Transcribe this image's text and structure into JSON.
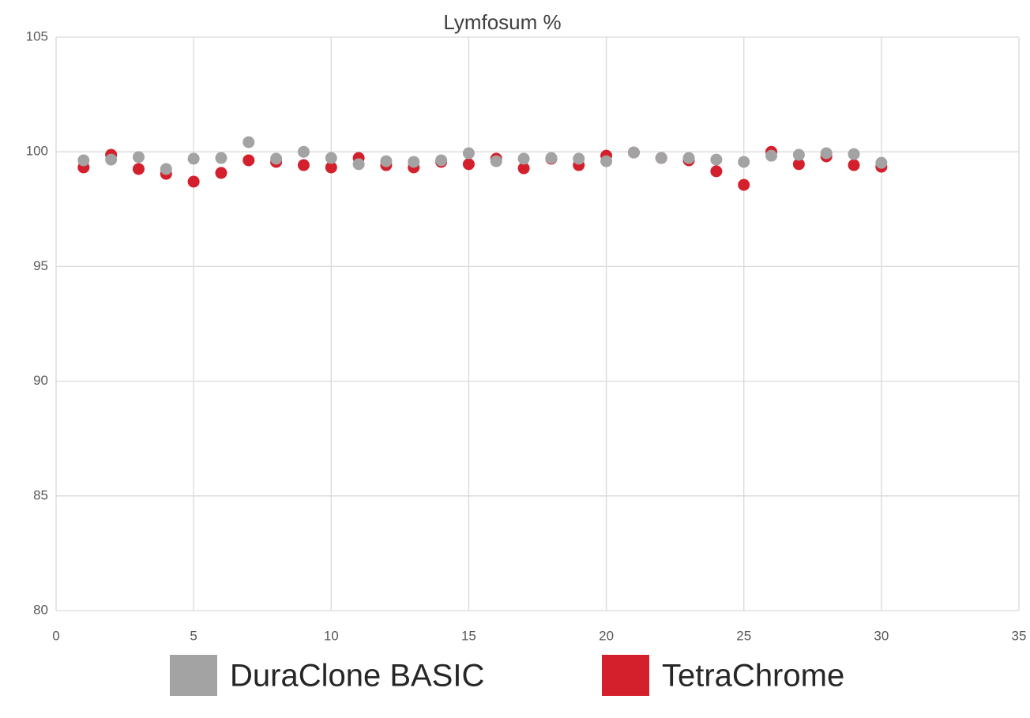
{
  "chart_data": {
    "type": "scatter",
    "title": "Lymfosum %",
    "x": [
      1,
      2,
      3,
      4,
      5,
      6,
      7,
      8,
      9,
      10,
      11,
      12,
      13,
      14,
      15,
      16,
      17,
      18,
      19,
      20,
      21,
      22,
      23,
      24,
      25,
      26,
      27,
      28,
      29,
      30
    ],
    "series": [
      {
        "name": "TetraChrome",
        "color": "#d4202c",
        "values": [
          99.32,
          99.87,
          99.25,
          99.04,
          98.7,
          99.08,
          99.63,
          99.56,
          99.42,
          99.32,
          99.73,
          99.42,
          99.32,
          99.56,
          99.46,
          99.7,
          99.28,
          99.7,
          99.42,
          99.83,
          99.97,
          99.73,
          99.63,
          99.15,
          98.56,
          100.0,
          99.46,
          99.8,
          99.42,
          99.35
        ]
      },
      {
        "name": "DuraClone BASIC",
        "color": "#a3a3a3",
        "values": [
          99.63,
          99.66,
          99.77,
          99.25,
          99.7,
          99.73,
          100.42,
          99.7,
          100.0,
          99.73,
          99.46,
          99.59,
          99.56,
          99.63,
          99.94,
          99.59,
          99.7,
          99.73,
          99.7,
          99.59,
          99.97,
          99.73,
          99.73,
          99.66,
          99.56,
          99.83,
          99.87,
          99.94,
          99.9,
          99.52
        ]
      }
    ],
    "xlim": [
      0,
      35
    ],
    "xticks": [
      0,
      5,
      10,
      15,
      20,
      25,
      30,
      35
    ],
    "ylim": [
      80,
      105
    ],
    "yticks": [
      80,
      85,
      90,
      95,
      100,
      105
    ],
    "grid": true,
    "legend": "bottom"
  }
}
